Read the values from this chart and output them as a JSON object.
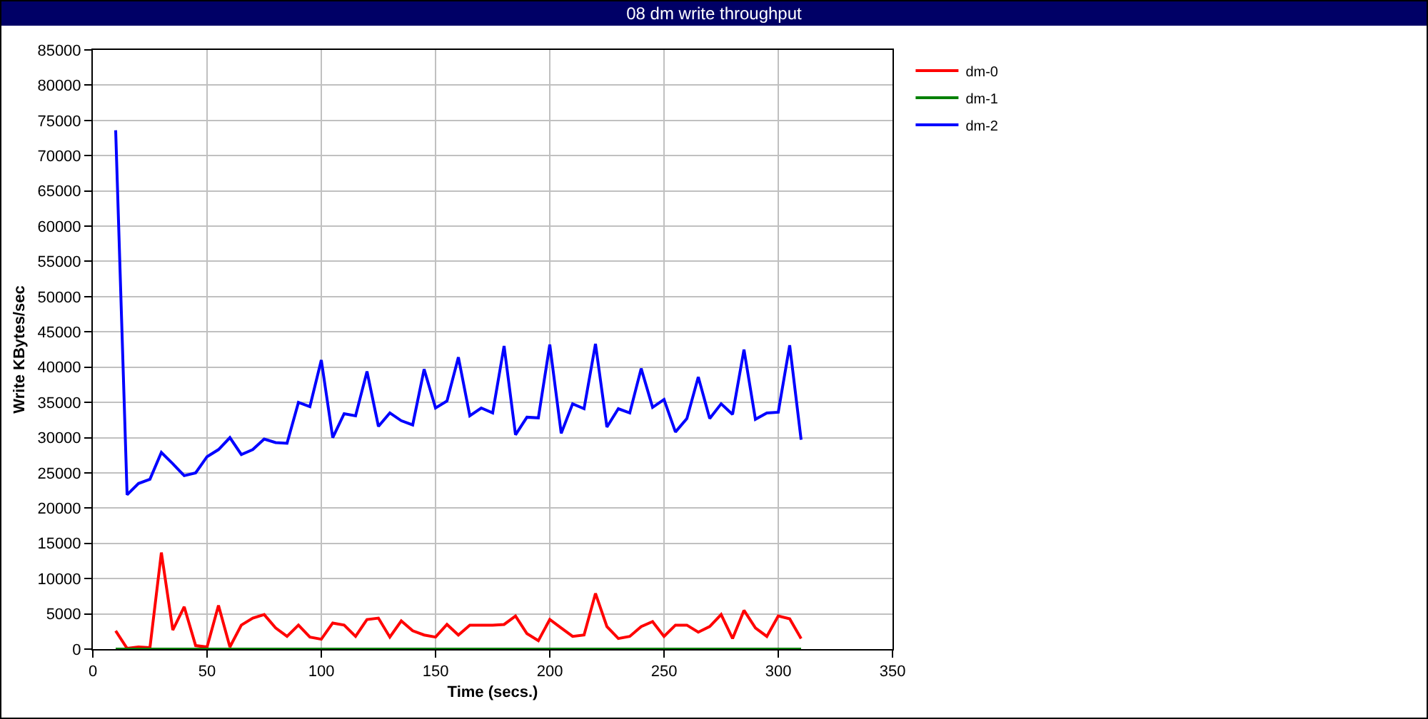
{
  "chart_data": {
    "type": "line",
    "title": "08 dm write throughput",
    "xlabel": "Time (secs.)",
    "ylabel": "Write KBytes/sec",
    "x": [
      10,
      15,
      20,
      25,
      30,
      35,
      40,
      45,
      50,
      55,
      60,
      65,
      70,
      75,
      80,
      85,
      90,
      95,
      100,
      105,
      110,
      115,
      120,
      125,
      130,
      135,
      140,
      145,
      150,
      155,
      160,
      165,
      170,
      175,
      180,
      185,
      190,
      195,
      200,
      205,
      210,
      215,
      220,
      225,
      230,
      235,
      240,
      245,
      250,
      255,
      260,
      265,
      270,
      275,
      280,
      285,
      290,
      295,
      300,
      305,
      310
    ],
    "series": [
      {
        "name": "dm-0",
        "color": "#ff0000",
        "values": [
          2600,
          100,
          300,
          200,
          13700,
          2700,
          6000,
          500,
          300,
          6200,
          300,
          3400,
          4400,
          4900,
          3000,
          1800,
          3400,
          1700,
          1400,
          3700,
          3400,
          1800,
          4200,
          4400,
          1700,
          4000,
          2600,
          2000,
          1700,
          3500,
          2000,
          3400,
          3400,
          3400,
          3500,
          4700,
          2200,
          1200,
          4200,
          3000,
          1800,
          2000,
          7900,
          3200,
          1500,
          1800,
          3200,
          3900,
          1800,
          3400,
          3400,
          2400,
          3200,
          4900,
          1500,
          5500,
          3000,
          1800,
          4700,
          4300,
          1500
        ]
      },
      {
        "name": "dm-1",
        "color": "#008000",
        "values": [
          0,
          0,
          0,
          0,
          0,
          0,
          0,
          0,
          0,
          0,
          0,
          0,
          0,
          0,
          0,
          0,
          0,
          0,
          0,
          0,
          0,
          0,
          0,
          0,
          0,
          0,
          0,
          0,
          0,
          0,
          0,
          0,
          0,
          0,
          0,
          0,
          0,
          0,
          0,
          0,
          0,
          0,
          0,
          0,
          0,
          0,
          0,
          0,
          0,
          0,
          0,
          0,
          0,
          0,
          0,
          0,
          0,
          0,
          0,
          0,
          0
        ]
      },
      {
        "name": "dm-2",
        "color": "#0000ff",
        "values": [
          73600,
          21900,
          23500,
          24100,
          27900,
          26300,
          24600,
          25000,
          27300,
          28300,
          30000,
          27600,
          28300,
          29800,
          29300,
          29200,
          35000,
          34400,
          41000,
          30000,
          33400,
          33100,
          39400,
          31600,
          33500,
          32400,
          31800,
          39700,
          34200,
          35200,
          41400,
          33100,
          34200,
          33500,
          43000,
          30400,
          32900,
          32800,
          43200,
          30600,
          34800,
          34100,
          43300,
          31500,
          34100,
          33500,
          39800,
          34300,
          35400,
          30800,
          32700,
          38600,
          32700,
          34800,
          33300,
          42500,
          32600,
          33500,
          33600,
          43100,
          29700
        ]
      }
    ],
    "xlim": [
      0,
      350
    ],
    "xticks": [
      0,
      50,
      100,
      150,
      200,
      250,
      300,
      350
    ],
    "ylim": [
      0,
      85000
    ],
    "yticks": [
      0,
      5000,
      10000,
      15000,
      20000,
      25000,
      30000,
      35000,
      40000,
      45000,
      50000,
      55000,
      60000,
      65000,
      70000,
      75000,
      80000,
      85000
    ],
    "grid": true,
    "legend": "top right"
  }
}
